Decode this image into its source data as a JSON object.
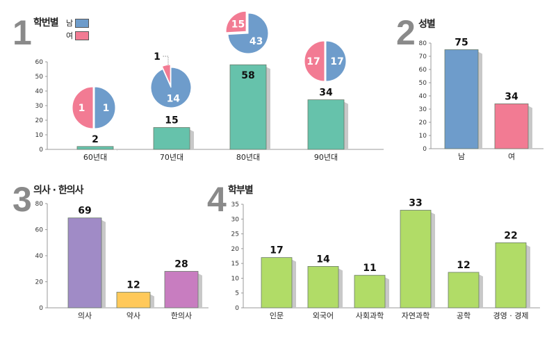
{
  "colors": {
    "male": "#6e9ccb",
    "female": "#f27b93",
    "year_bar": "#66c2ab",
    "pharm": "#ffc95a",
    "doctor": "#a08bc6",
    "oriental": "#c87dc0",
    "dept": "#b1dc67"
  },
  "legend": {
    "male": "남",
    "female": "여"
  },
  "chart_data": [
    {
      "type": "bar",
      "number": "1",
      "title": "학번별",
      "categories": [
        "60년대",
        "70년대",
        "80년대",
        "90년대"
      ],
      "values": [
        2,
        15,
        58,
        34
      ],
      "yticks": [
        "0",
        "10",
        "20",
        "30",
        "40",
        "50",
        "60"
      ],
      "ylim": [
        0,
        60
      ],
      "pies": [
        {
          "male": 1,
          "female": 1
        },
        {
          "male": 14,
          "female": 1
        },
        {
          "male": 43,
          "female": 15
        },
        {
          "male": 17,
          "female": 17
        }
      ]
    },
    {
      "type": "bar",
      "number": "2",
      "title": "성별",
      "categories": [
        "남",
        "여"
      ],
      "values": [
        75,
        34
      ],
      "yticks": [
        "0",
        "10",
        "20",
        "30",
        "40",
        "50",
        "60",
        "70",
        "80"
      ],
      "ylim": [
        0,
        80
      ]
    },
    {
      "type": "bar",
      "number": "3",
      "title": "의사 · 한의사",
      "categories": [
        "의사",
        "약사",
        "한의사"
      ],
      "values": [
        69,
        12,
        28
      ],
      "yticks": [
        "0",
        "20",
        "40",
        "60",
        "80"
      ],
      "ylim": [
        0,
        80
      ]
    },
    {
      "type": "bar",
      "number": "4",
      "title": "학부별",
      "categories": [
        "인문",
        "외국어",
        "사회과학",
        "자연과학",
        "공학",
        "경영 · 경제"
      ],
      "values": [
        17,
        14,
        11,
        33,
        12,
        22
      ],
      "yticks": [
        "0",
        "5",
        "10",
        "15",
        "20",
        "25",
        "30",
        "35"
      ],
      "ylim": [
        0,
        35
      ]
    }
  ]
}
